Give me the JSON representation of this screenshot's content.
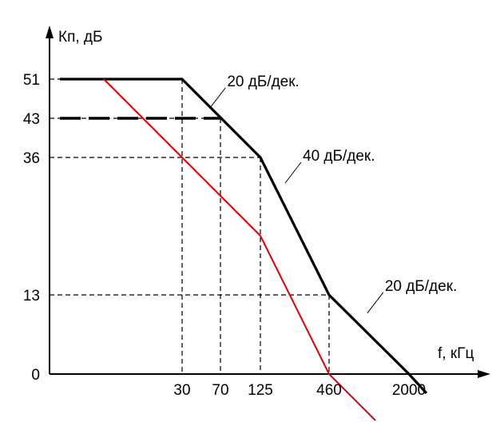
{
  "chart_data": {
    "type": "line",
    "title": "",
    "ylabel": "Кп, дБ",
    "xlabel": "f, кГц",
    "x_ticks": [
      "30",
      "70",
      "125",
      "460",
      "2000"
    ],
    "y_ticks": [
      "0",
      "13",
      "36",
      "43",
      "51"
    ],
    "colors": {
      "asymptote": "#000000",
      "response": "#e00000",
      "guides": "#000000"
    },
    "series": [
      {
        "style": "solid-black",
        "points": [
          [
            10,
            51
          ],
          [
            30,
            51
          ],
          [
            125,
            36
          ],
          [
            460,
            13
          ],
          [
            2000,
            0
          ],
          [
            2600,
            -2
          ]
        ]
      },
      {
        "style": "dashed-black",
        "points": [
          [
            10,
            43
          ],
          [
            70,
            43
          ]
        ]
      },
      {
        "style": "solid-red",
        "points": [
          [
            15,
            51
          ],
          [
            30,
            36
          ],
          [
            70,
            27
          ],
          [
            125,
            18
          ],
          [
            460,
            0
          ],
          [
            900,
            -6
          ]
        ]
      }
    ],
    "guide_lines": [
      {
        "x": 30,
        "y": 51
      },
      {
        "x": 70,
        "y": 43
      },
      {
        "x": 125,
        "y": 36
      },
      {
        "x": 460,
        "y": 13
      }
    ],
    "annotations": [
      {
        "text": "20 дБ/дек.",
        "pointer": [
          55,
          45
        ]
      },
      {
        "text": "40 дБ/дек.",
        "pointer": [
          200,
          30
        ]
      },
      {
        "text": "20 дБ/дек.",
        "pointer": [
          800,
          10
        ]
      }
    ]
  }
}
